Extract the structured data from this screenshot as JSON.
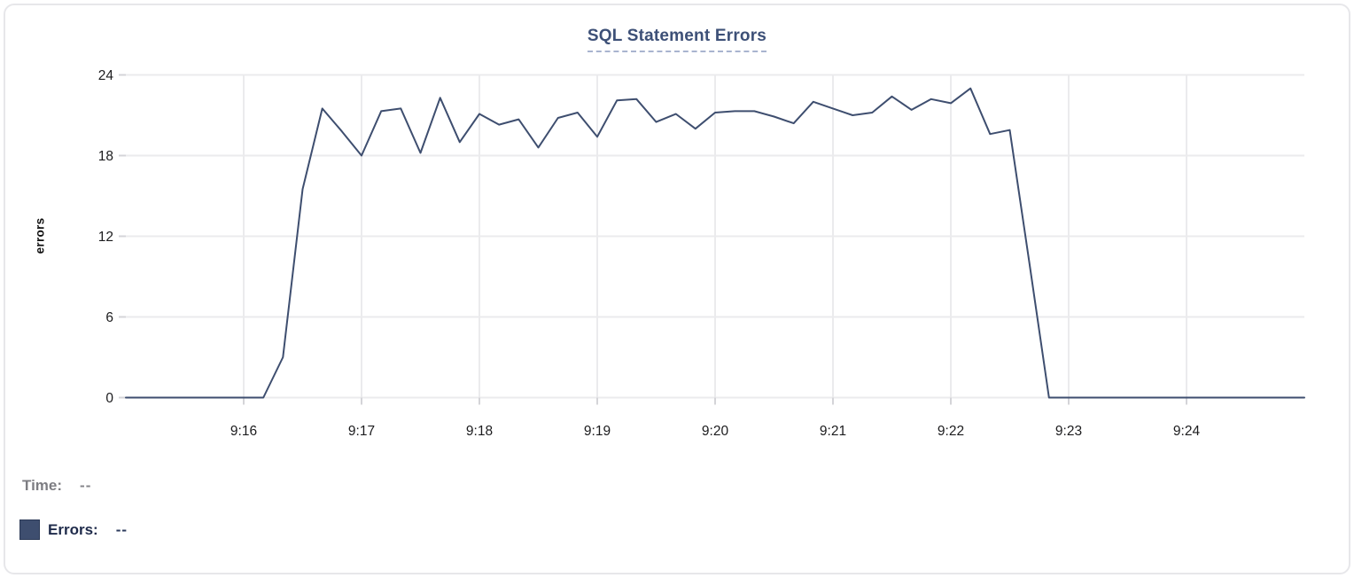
{
  "card": {
    "title": "SQL Statement Errors"
  },
  "colors": {
    "line": "#3e4e6f",
    "title": "#3d5077",
    "title_underline": "#a9b4cf",
    "grid": "#ebebed",
    "tick": "#d4d4d8",
    "axis_text": "#1c1c1e",
    "legend_time_label": "#7d7d82",
    "legend_errors_label": "#1e2a4a",
    "card_border": "#e7e7ea",
    "swatch_fill": "#3e4e6f"
  },
  "chart_data": {
    "type": "line",
    "title": "SQL Statement Errors",
    "xlabel": "",
    "ylabel": "errors",
    "ylim": [
      0,
      24
    ],
    "yticks": [
      0,
      6,
      12,
      18,
      24
    ],
    "x_tick_labels": [
      "9:16",
      "9:17",
      "9:18",
      "9:19",
      "9:20",
      "9:21",
      "9:22",
      "9:23",
      "9:24"
    ],
    "x_range": [
      "9:15:00",
      "9:25:00"
    ],
    "sample_interval_seconds": 10,
    "grid": true,
    "legend_position": "bottom-left",
    "x": [
      "9:15:00",
      "9:15:10",
      "9:15:20",
      "9:15:30",
      "9:15:40",
      "9:15:50",
      "9:16:00",
      "9:16:10",
      "9:16:20",
      "9:16:30",
      "9:16:40",
      "9:16:50",
      "9:17:00",
      "9:17:10",
      "9:17:20",
      "9:17:30",
      "9:17:40",
      "9:17:50",
      "9:18:00",
      "9:18:10",
      "9:18:20",
      "9:18:30",
      "9:18:40",
      "9:18:50",
      "9:19:00",
      "9:19:10",
      "9:19:20",
      "9:19:30",
      "9:19:40",
      "9:19:50",
      "9:20:00",
      "9:20:10",
      "9:20:20",
      "9:20:30",
      "9:20:40",
      "9:20:50",
      "9:21:00",
      "9:21:10",
      "9:21:20",
      "9:21:30",
      "9:21:40",
      "9:21:50",
      "9:22:00",
      "9:22:10",
      "9:22:20",
      "9:22:30",
      "9:22:40",
      "9:22:50",
      "9:23:00",
      "9:23:10",
      "9:23:20",
      "9:23:30",
      "9:23:40",
      "9:23:50",
      "9:24:00",
      "9:24:10",
      "9:24:20",
      "9:24:30",
      "9:24:40",
      "9:24:50",
      "9:25:00"
    ],
    "series": [
      {
        "name": "Errors",
        "color": "#3e4e6f",
        "values": [
          0,
          0,
          0,
          0,
          0,
          0,
          0,
          0,
          3,
          15.5,
          21.5,
          19.8,
          18,
          21.3,
          21.5,
          18.2,
          22.3,
          19,
          21.1,
          20.3,
          20.7,
          18.6,
          20.8,
          21.2,
          19.4,
          22.1,
          22.2,
          20.5,
          21.1,
          20,
          21.2,
          21.3,
          21.3,
          20.9,
          20.4,
          22,
          21.5,
          21,
          21.2,
          22.4,
          21.4,
          22.2,
          21.9,
          23,
          19.6,
          19.9,
          10,
          0,
          0,
          0,
          0,
          0,
          0,
          0,
          0,
          0,
          0,
          0,
          0,
          0,
          0
        ]
      }
    ]
  },
  "tooltip_legend": {
    "time_label": "Time:",
    "time_value": "--",
    "errors_label": "Errors:",
    "errors_value": "--"
  }
}
